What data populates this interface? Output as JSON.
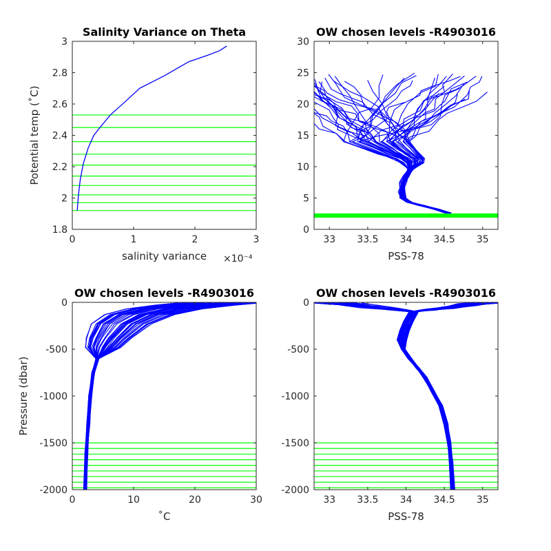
{
  "chart_data": [
    {
      "type": "line",
      "title": "Salinity Variance on Theta",
      "xlabel": "salinity variance",
      "x_exponent": "×10⁻⁴",
      "ylabel": "Potential temp (˚C)",
      "xlim": [
        0,
        3
      ],
      "ylim": [
        1.8,
        3
      ],
      "xticks": [
        "0",
        "1",
        "2",
        "3"
      ],
      "yticks": [
        "1.8",
        "2",
        "2.2",
        "2.4",
        "2.6",
        "2.8",
        "3"
      ],
      "series": [
        {
          "color": "#0000ff",
          "points": [
            [
              0.08,
              1.92
            ],
            [
              0.1,
              2.02
            ],
            [
              0.13,
              2.12
            ],
            [
              0.18,
              2.22
            ],
            [
              0.26,
              2.32
            ],
            [
              0.35,
              2.4
            ],
            [
              0.45,
              2.45
            ],
            [
              0.62,
              2.53
            ],
            [
              0.85,
              2.61
            ],
            [
              1.1,
              2.7
            ],
            [
              1.5,
              2.78
            ],
            [
              1.9,
              2.87
            ],
            [
              2.2,
              2.91
            ],
            [
              2.4,
              2.94
            ],
            [
              2.52,
              2.97
            ]
          ]
        }
      ],
      "hlines": {
        "color": "#00ff00",
        "values": [
          1.92,
          1.97,
          2.02,
          2.08,
          2.14,
          2.21,
          2.28,
          2.36,
          2.45,
          2.53
        ]
      }
    },
    {
      "type": "line",
      "title": "OW chosen levels -R4903016",
      "xlabel": "PSS-78",
      "ylabel": "",
      "xlim": [
        32.8,
        35.2
      ],
      "ylim": [
        0,
        30
      ],
      "xticks": [
        "33",
        "33.5",
        "34",
        "34.5",
        "35"
      ],
      "yticks": [
        "0",
        "5",
        "10",
        "15",
        "20",
        "25",
        "30"
      ],
      "profile_color": "#0000ff",
      "core_profile": [
        [
          34.55,
          2.6
        ],
        [
          34.4,
          3.2
        ],
        [
          34.2,
          3.8
        ],
        [
          34.05,
          4.3
        ],
        [
          33.96,
          5.0
        ],
        [
          33.94,
          6.0
        ],
        [
          33.96,
          7.5
        ],
        [
          34.0,
          8.5
        ],
        [
          34.06,
          9.6
        ],
        [
          34.07,
          10.6
        ],
        [
          34.02,
          11.3
        ],
        [
          33.9,
          12.0
        ],
        [
          33.75,
          13.0
        ],
        [
          33.6,
          14.0
        ]
      ],
      "hlines": {
        "color": "#00ff00",
        "values": [
          1.95,
          2.05,
          2.15,
          2.25,
          2.35,
          2.45
        ]
      }
    },
    {
      "type": "line",
      "title": "OW chosen levels -R4903016",
      "xlabel": "˚C",
      "ylabel": "Pressure (dbar)",
      "xlim": [
        0,
        30
      ],
      "ylim": [
        -2000,
        0
      ],
      "xticks": [
        "0",
        "10",
        "20",
        "30"
      ],
      "yticks": [
        "-2000",
        "-1500",
        "-1000",
        "-500",
        "0"
      ],
      "profile_color": "#0000ff",
      "core_profile": [
        [
          24,
          -5
        ],
        [
          20,
          -30
        ],
        [
          15,
          -70
        ],
        [
          11,
          -130
        ],
        [
          8,
          -230
        ],
        [
          6,
          -380
        ],
        [
          5,
          -480
        ],
        [
          4.1,
          -600
        ],
        [
          3.4,
          -750
        ],
        [
          2.9,
          -1000
        ],
        [
          2.6,
          -1300
        ],
        [
          2.3,
          -1600
        ],
        [
          2.1,
          -2000
        ]
      ],
      "hlines": {
        "color": "#00ff00",
        "values": [
          -1500,
          -1560,
          -1620,
          -1680,
          -1740,
          -1800,
          -1860,
          -1920,
          -1980
        ]
      }
    },
    {
      "type": "line",
      "title": "OW chosen levels -R4903016",
      "xlabel": "PSS-78",
      "ylabel": "",
      "xlim": [
        32.8,
        35.2
      ],
      "ylim": [
        -2000,
        0
      ],
      "xticks": [
        "33",
        "33.5",
        "34",
        "34.5",
        "35"
      ],
      "yticks": [
        "-2000",
        "-1500",
        "-1000",
        "-500",
        "0"
      ],
      "profile_color": "#0000ff",
      "core_profile": [
        [
          34.1,
          -100
        ],
        [
          34.03,
          -200
        ],
        [
          33.98,
          -300
        ],
        [
          33.95,
          -400
        ],
        [
          33.96,
          -500
        ],
        [
          34.05,
          -600
        ],
        [
          34.15,
          -700
        ],
        [
          34.25,
          -800
        ],
        [
          34.35,
          -950
        ],
        [
          34.45,
          -1100
        ],
        [
          34.52,
          -1300
        ],
        [
          34.56,
          -1500
        ],
        [
          34.59,
          -1700
        ],
        [
          34.61,
          -2000
        ]
      ],
      "hlines": {
        "color": "#00ff00",
        "values": [
          -1500,
          -1560,
          -1620,
          -1680,
          -1740,
          -1800,
          -1860,
          -1920,
          -1980
        ]
      }
    }
  ]
}
